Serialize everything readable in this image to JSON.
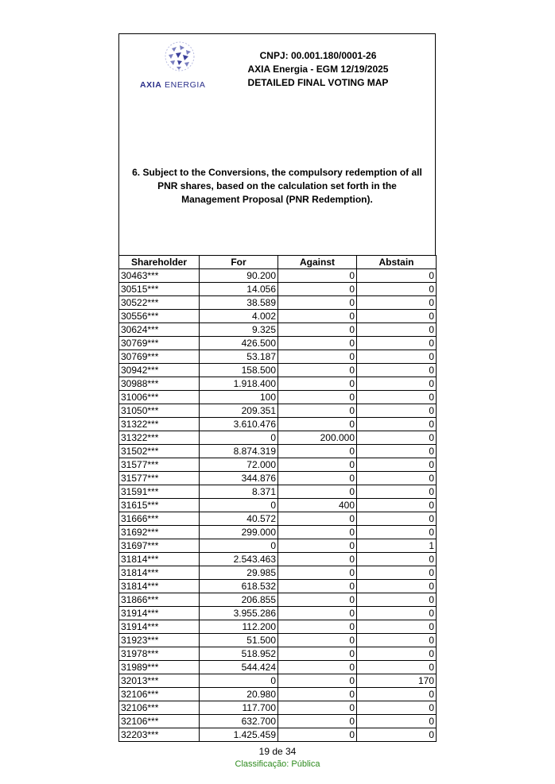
{
  "header": {
    "logo_text_bold": "AXIA",
    "logo_text_rest": "ENERGIA",
    "cnpj": "CNPJ: 00.001.180/0001-26",
    "meeting": "AXIA Energia - EGM  12/19/2025",
    "title": "DETAILED FINAL VOTING MAP",
    "brand_color": "#2a2f8a"
  },
  "question": "6.  Subject to the Conversions, the compulsory redemption of all PNR shares, based on the calculation set forth in the Management Proposal (PNR Redemption).",
  "table": {
    "columns": [
      "Shareholder",
      "For",
      "Against",
      "Abstain"
    ],
    "rows": [
      [
        "30463***",
        "90.200",
        "0",
        "0"
      ],
      [
        "30515***",
        "14.056",
        "0",
        "0"
      ],
      [
        "30522***",
        "38.589",
        "0",
        "0"
      ],
      [
        "30556***",
        "4.002",
        "0",
        "0"
      ],
      [
        "30624***",
        "9.325",
        "0",
        "0"
      ],
      [
        "30769***",
        "426.500",
        "0",
        "0"
      ],
      [
        "30769***",
        "53.187",
        "0",
        "0"
      ],
      [
        "30942***",
        "158.500",
        "0",
        "0"
      ],
      [
        "30988***",
        "1.918.400",
        "0",
        "0"
      ],
      [
        "31006***",
        "100",
        "0",
        "0"
      ],
      [
        "31050***",
        "209.351",
        "0",
        "0"
      ],
      [
        "31322***",
        "3.610.476",
        "0",
        "0"
      ],
      [
        "31322***",
        "0",
        "200.000",
        "0"
      ],
      [
        "31502***",
        "8.874.319",
        "0",
        "0"
      ],
      [
        "31577***",
        "72.000",
        "0",
        "0"
      ],
      [
        "31577***",
        "344.876",
        "0",
        "0"
      ],
      [
        "31591***",
        "8.371",
        "0",
        "0"
      ],
      [
        "31615***",
        "0",
        "400",
        "0"
      ],
      [
        "31666***",
        "40.572",
        "0",
        "0"
      ],
      [
        "31692***",
        "299.000",
        "0",
        "0"
      ],
      [
        "31697***",
        "0",
        "0",
        "1"
      ],
      [
        "31814***",
        "2.543.463",
        "0",
        "0"
      ],
      [
        "31814***",
        "29.985",
        "0",
        "0"
      ],
      [
        "31814***",
        "618.532",
        "0",
        "0"
      ],
      [
        "31866***",
        "206.855",
        "0",
        "0"
      ],
      [
        "31914***",
        "3.955.286",
        "0",
        "0"
      ],
      [
        "31914***",
        "112.200",
        "0",
        "0"
      ],
      [
        "31923***",
        "51.500",
        "0",
        "0"
      ],
      [
        "31978***",
        "518.952",
        "0",
        "0"
      ],
      [
        "31989***",
        "544.424",
        "0",
        "0"
      ],
      [
        "32013***",
        "0",
        "0",
        "170"
      ],
      [
        "32106***",
        "20.980",
        "0",
        "0"
      ],
      [
        "32106***",
        "117.700",
        "0",
        "0"
      ],
      [
        "32106***",
        "632.700",
        "0",
        "0"
      ],
      [
        "32203***",
        "1.425.459",
        "0",
        "0"
      ]
    ]
  },
  "footer": {
    "page": "19 de 34",
    "classification": "Classificação: Pública",
    "classification_color": "#2e8b1e"
  }
}
